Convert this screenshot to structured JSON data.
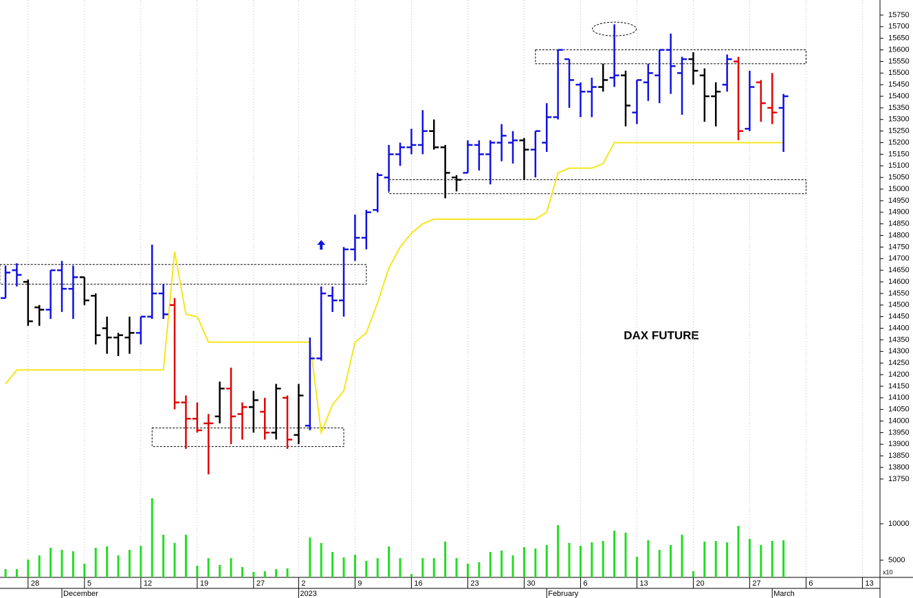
{
  "chart_data": {
    "type": "ohlc",
    "annotation": "DAX FUTURE",
    "volume_unit": "x10",
    "categories": [
      null,
      null,
      null,
      null,
      null,
      null,
      null,
      null,
      null,
      null,
      null,
      null,
      null,
      null,
      null,
      null,
      null,
      null,
      null,
      null,
      null,
      null,
      null,
      null,
      null,
      null,
      null,
      null,
      null,
      null,
      null,
      null,
      null,
      null,
      null,
      null,
      null,
      null,
      null,
      null,
      null,
      null,
      null,
      null,
      null,
      null,
      null,
      null,
      null,
      null,
      null,
      null,
      null,
      null,
      null,
      null,
      null,
      null,
      null,
      null,
      null,
      null,
      null,
      null,
      null,
      null,
      null,
      null,
      null,
      null
    ],
    "open": [
      14530,
      14650,
      14600,
      14490,
      14480,
      14650,
      14570,
      14620,
      14540,
      14400,
      14360,
      14360,
      14380,
      14450,
      14550,
      14500,
      14080,
      14010,
      13990,
      14020,
      14140,
      14030,
      14060,
      14040,
      13950,
      14100,
      13940,
      13980,
      14270,
      14540,
      14520,
      14740,
      14790,
      14910,
      15050,
      15150,
      15180,
      15190,
      15250,
      15180,
      15050,
      15070,
      15190,
      15150,
      15200,
      15200,
      15210,
      15170,
      15200,
      15310,
      15560,
      15450,
      15420,
      15440,
      15480,
      15490,
      15330,
      15460,
      15490,
      15600,
      15500,
      15560,
      15490,
      15400,
      15450,
      15550,
      15260,
      15460,
      15350,
      15350
    ],
    "high": [
      14670,
      14680,
      14610,
      14500,
      14650,
      14690,
      14670,
      14620,
      14550,
      14450,
      14380,
      14450,
      14450,
      14760,
      14590,
      14530,
      14110,
      14080,
      14030,
      14170,
      14230,
      14080,
      14130,
      14100,
      14160,
      14110,
      14160,
      14360,
      14580,
      14580,
      14750,
      14890,
      14910,
      15070,
      15190,
      15200,
      15260,
      15340,
      15300,
      15190,
      15060,
      15210,
      15210,
      15210,
      15280,
      15250,
      15220,
      15250,
      15370,
      15600,
      15560,
      15460,
      15480,
      15540,
      15710,
      15510,
      15470,
      15540,
      15600,
      15670,
      15570,
      15590,
      15520,
      15460,
      15580,
      15570,
      15510,
      15470,
      15500,
      15410
    ],
    "low": [
      14530,
      14580,
      14410,
      14410,
      14440,
      14470,
      14440,
      14500,
      14330,
      14290,
      14280,
      14290,
      14330,
      14440,
      14440,
      14050,
      13880,
      13950,
      13770,
      13990,
      13900,
      13920,
      13950,
      13920,
      13920,
      13880,
      13900,
      13960,
      14260,
      14470,
      14450,
      14690,
      14740,
      14900,
      14990,
      15100,
      15150,
      15150,
      15170,
      14960,
      14990,
      15070,
      15080,
      15020,
      15120,
      15110,
      15040,
      15050,
      15160,
      15300,
      15350,
      15310,
      15310,
      15420,
      15440,
      15270,
      15280,
      15380,
      15370,
      15410,
      15320,
      15450,
      15290,
      15270,
      15420,
      15210,
      15250,
      15290,
      15280,
      15160
    ],
    "close": [
      14640,
      14630,
      14430,
      14480,
      14650,
      14570,
      14620,
      14520,
      14370,
      14360,
      14370,
      14380,
      14450,
      14550,
      14460,
      14080,
      14010,
      13960,
      13990,
      14140,
      14020,
      14060,
      14090,
      13950,
      14140,
      13920,
      14110,
      14270,
      14550,
      14520,
      14740,
      14790,
      14900,
      15060,
      15150,
      15180,
      15190,
      15250,
      15180,
      15070,
      15040,
      15190,
      15150,
      15200,
      15230,
      15210,
      15170,
      15250,
      15310,
      15600,
      15470,
      15420,
      15440,
      15470,
      15490,
      15360,
      15470,
      15500,
      15600,
      15530,
      15560,
      15510,
      15400,
      15420,
      15560,
      15250,
      15440,
      15370,
      15330,
      15400
    ],
    "bar_colors": [
      "#1010e0",
      "#1010e0",
      "#000000",
      "#000000",
      "#1010e0",
      "#1010e0",
      "#1010e0",
      "#000000",
      "#000000",
      "#000000",
      "#000000",
      "#000000",
      "#1010e0",
      "#1010e0",
      "#1010e0",
      "#e00000",
      "#e00000",
      "#e00000",
      "#e00000",
      "#000000",
      "#e00000",
      "#e00000",
      "#000000",
      "#e00000",
      "#000000",
      "#e00000",
      "#000000",
      "#1010e0",
      "#1010e0",
      "#1010e0",
      "#1010e0",
      "#1010e0",
      "#1010e0",
      "#1010e0",
      "#1010e0",
      "#1010e0",
      "#1010e0",
      "#1010e0",
      "#000000",
      "#000000",
      "#000000",
      "#1010e0",
      "#1010e0",
      "#1010e0",
      "#1010e0",
      "#1010e0",
      "#000000",
      "#1010e0",
      "#1010e0",
      "#1010e0",
      "#1010e0",
      "#1010e0",
      "#1010e0",
      "#000000",
      "#1010e0",
      "#000000",
      "#1010e0",
      "#1010e0",
      "#1010e0",
      "#1010e0",
      "#1010e0",
      "#000000",
      "#000000",
      "#000000",
      "#1010e0",
      "#e00000",
      "#1010e0",
      "#e00000",
      "#e00000",
      "#1010e0"
    ],
    "stop_line": {
      "color": "#f5e61a",
      "values": [
        14160,
        14220,
        14220,
        14220,
        14220,
        14220,
        14220,
        14220,
        14220,
        14220,
        14220,
        14220,
        14220,
        14220,
        14220,
        14730,
        14460,
        14450,
        14340,
        14340,
        14340,
        14340,
        14340,
        14340,
        14340,
        14340,
        14340,
        14340,
        13950,
        14070,
        14130,
        14340,
        14380,
        14510,
        14660,
        14750,
        14810,
        14850,
        14870,
        14870,
        14870,
        14870,
        14870,
        14870,
        14870,
        14870,
        14870,
        14870,
        14900,
        15070,
        15090,
        15090,
        15090,
        15110,
        15200,
        15200,
        15200,
        15200,
        15200,
        15200,
        15200,
        15200,
        15200,
        15200,
        15200,
        15200,
        15200,
        15200,
        15200,
        15200
      ]
    },
    "volume": {
      "color": "#22dd22",
      "axis": "y2",
      "values": [
        3770,
        3770,
        5090,
        5660,
        6700,
        6420,
        6230,
        4530,
        6700,
        6890,
        5660,
        6420,
        6980,
        13490,
        8490,
        7360,
        8490,
        4250,
        5280,
        4340,
        5280,
        4060,
        3400,
        3490,
        3770,
        3870,
        null,
        8110,
        7360,
        6130,
        5380,
        5750,
        4910,
        5280,
        6890,
        5280,
        3110,
        5280,
        5280,
        7550,
        5280,
        4530,
        4720,
        6130,
        6320,
        5660,
        6790,
        6600,
        7080,
        9810,
        7360,
        6980,
        7450,
        7640,
        9060,
        8770,
        5470,
        7740,
        6420,
        7080,
        8490,
        3490,
        7550,
        7640,
        7450,
        9720,
        7920,
        7080,
        7640,
        7740
      ]
    },
    "zones": [
      {
        "x0": -0.5,
        "x1": 32,
        "low": 14590,
        "high": 14675
      },
      {
        "x0": 13,
        "x1": 30,
        "low": 13890,
        "high": 13970
      },
      {
        "x0": 34,
        "x1": 71,
        "low": 14980,
        "high": 15040
      },
      {
        "x0": 47,
        "x1": 71,
        "low": 15540,
        "high": 15600
      }
    ],
    "highlight": {
      "x": 54,
      "y": 15690
    },
    "arrow": {
      "x": 28,
      "y": 14780,
      "color": "#1010e0"
    },
    "xlim": [
      -0.49,
      77.56
    ],
    "xticks": [
      {
        "value": 2,
        "label": "28"
      },
      {
        "value": 7,
        "label": "5"
      },
      {
        "value": 12,
        "label": "12"
      },
      {
        "value": 17,
        "label": "19"
      },
      {
        "value": 22,
        "label": "27"
      },
      {
        "value": 26,
        "label": "2"
      },
      {
        "value": 31,
        "label": "9"
      },
      {
        "value": 36,
        "label": "16"
      },
      {
        "value": 41,
        "label": "23"
      },
      {
        "value": 46,
        "label": "30"
      },
      {
        "value": 51,
        "label": "6"
      },
      {
        "value": 56,
        "label": "13"
      },
      {
        "value": 61,
        "label": "20"
      },
      {
        "value": 66,
        "label": "27"
      },
      {
        "value": 71,
        "label": "6"
      },
      {
        "value": 76,
        "label": "13"
      }
    ],
    "month_ticks": [
      {
        "value": 5,
        "label": "December"
      },
      {
        "value": 26,
        "label": "2023"
      },
      {
        "value": 48,
        "label": "February"
      },
      {
        "value": 68,
        "label": "March"
      }
    ],
    "ylim": [
      13326,
      15815
    ],
    "yticks": [
      13750,
      13800,
      13850,
      13900,
      13950,
      14000,
      14050,
      14100,
      14150,
      14200,
      14250,
      14300,
      14350,
      14400,
      14450,
      14500,
      14550,
      14600,
      14650,
      14700,
      14750,
      14800,
      14850,
      14900,
      14950,
      15000,
      15050,
      15100,
      15150,
      15200,
      15250,
      15300,
      15350,
      15400,
      15450,
      15500,
      15550,
      15600,
      15650,
      15700,
      15750
    ],
    "y2lim": [
      2640,
      81900
    ],
    "y2ticks": [
      5000,
      10000
    ],
    "grid": true
  }
}
